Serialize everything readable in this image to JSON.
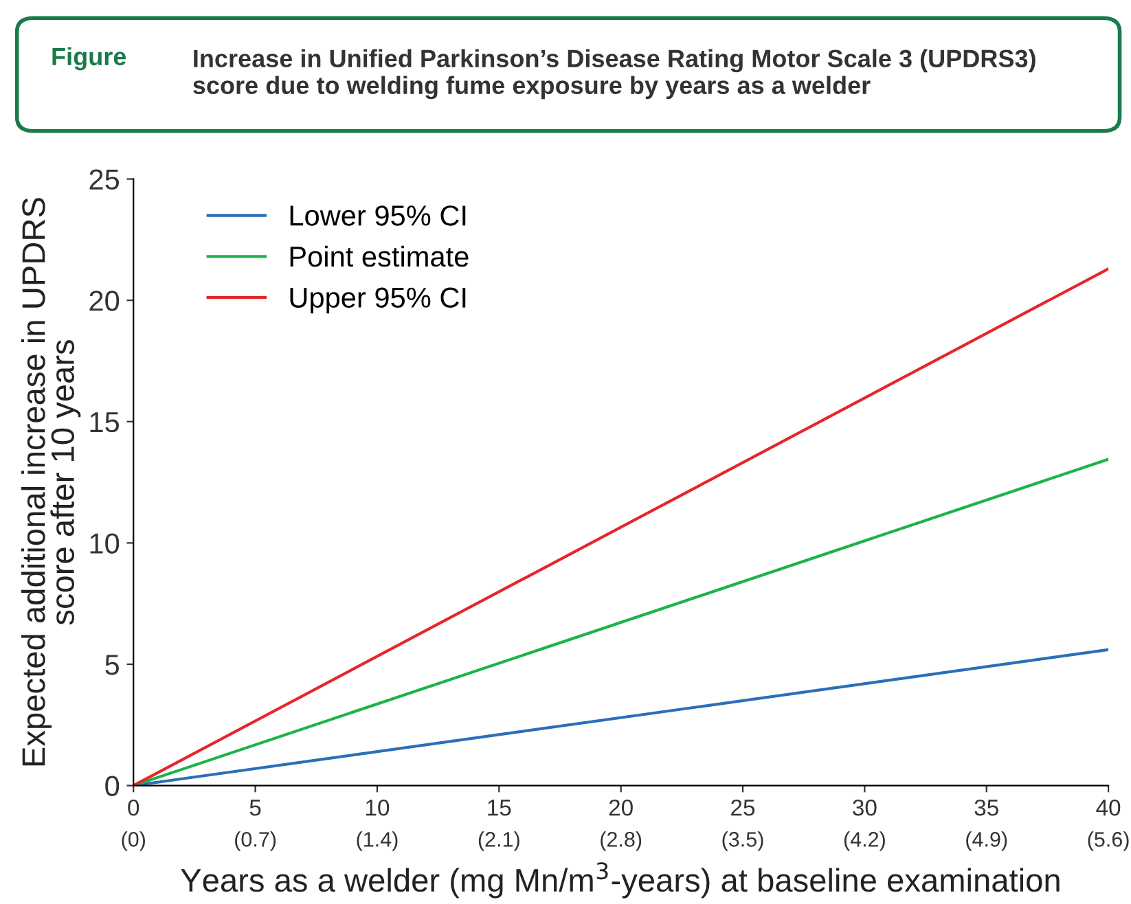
{
  "chart_data": {
    "type": "line",
    "title": "Increase in Unified Parkinson’s Disease Rating Motor Scale 3 (UPDRS3)\nscore due to welding fume exposure by years as a welder",
    "annotations": [
      "Figure"
    ],
    "xlabel": "Years as a welder (mg Mn/m$^{3}$-years) at baseline examination",
    "ylabel": "Expected additional increase in UPDRS\nscore after 10 years",
    "x": [
      0,
      40
    ],
    "series": [
      {
        "name": "Lower 95% CI",
        "color": "#2a6fb8",
        "values": [
          0,
          5.6
        ]
      },
      {
        "name": "Point estimate",
        "color": "#1db34a",
        "values": [
          0,
          13.45
        ]
      },
      {
        "name": "Upper 95% CI",
        "color": "#e5262b",
        "values": [
          0,
          21.3
        ]
      }
    ],
    "xlim": [
      0,
      40
    ],
    "ylim": [
      0,
      25
    ],
    "xticks": [
      0,
      5,
      10,
      15,
      20,
      25,
      30,
      35,
      40
    ],
    "x2lim": [
      0,
      5.6
    ],
    "x2ticks": [
      {
        "value": 0,
        "label": "(0)"
      },
      {
        "value": 0.7,
        "label": "(0.7)"
      },
      {
        "value": 1.4,
        "label": "(1.4)"
      },
      {
        "value": 2.1,
        "label": "(2.1)"
      },
      {
        "value": 2.8,
        "label": "(2.8)"
      },
      {
        "value": 3.5,
        "label": "(3.5)"
      },
      {
        "value": 4.2,
        "label": "(4.2)"
      },
      {
        "value": 4.9,
        "label": "(4.9)"
      },
      {
        "value": 5.6,
        "label": "(5.6)"
      }
    ],
    "yticks": [
      0,
      5,
      10,
      15,
      20,
      25
    ],
    "legend": "top left",
    "grid": false,
    "marker": "none",
    "line_style": "solid"
  }
}
